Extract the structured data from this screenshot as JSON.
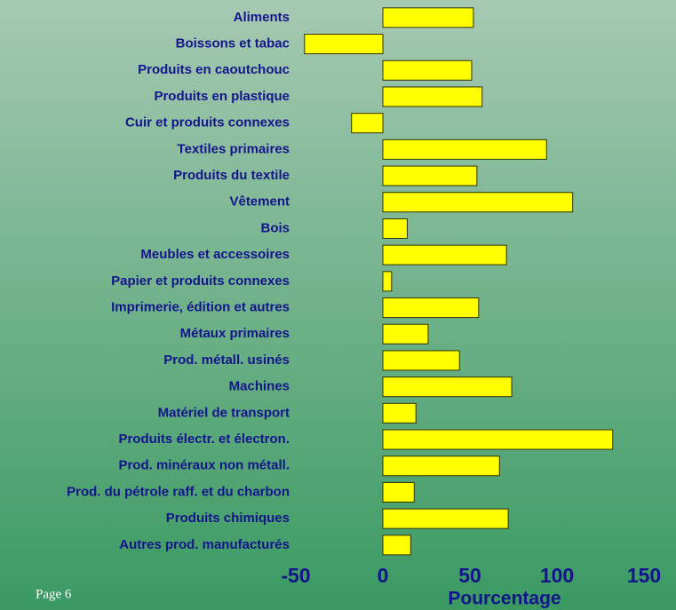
{
  "page": {
    "footer": "Page 6"
  },
  "chart_data": {
    "type": "bar",
    "orientation": "horizontal",
    "xlabel": "Pourcentage",
    "categories": [
      "Aliments",
      "Boissons et tabac",
      "Produits en caoutchouc",
      "Produits en plastique",
      "Cuir et produits connexes",
      "Textiles primaires",
      "Produits du textile",
      "Vêtement",
      "Bois",
      "Meubles et accessoires",
      "Papier et produits connexes",
      "Imprimerie, édition et autres",
      "Métaux primaires",
      "Prod. métall. usinés",
      "Machines",
      "Matériel de transport",
      "Produits électr. et électron.",
      "Prod. minéraux non métall.",
      "Prod. du pétrole raff. et du charbon",
      "Produits chimiques",
      "Autres prod. manufacturés"
    ],
    "values": [
      52,
      -45,
      51,
      57,
      -18,
      94,
      54,
      109,
      14,
      71,
      5,
      55,
      26,
      44,
      74,
      19,
      132,
      67,
      18,
      72,
      16
    ],
    "color": "#ffff00",
    "xlim": [
      -50,
      150
    ],
    "xticks": [
      -50,
      0,
      50,
      100,
      150
    ],
    "grid": false
  }
}
